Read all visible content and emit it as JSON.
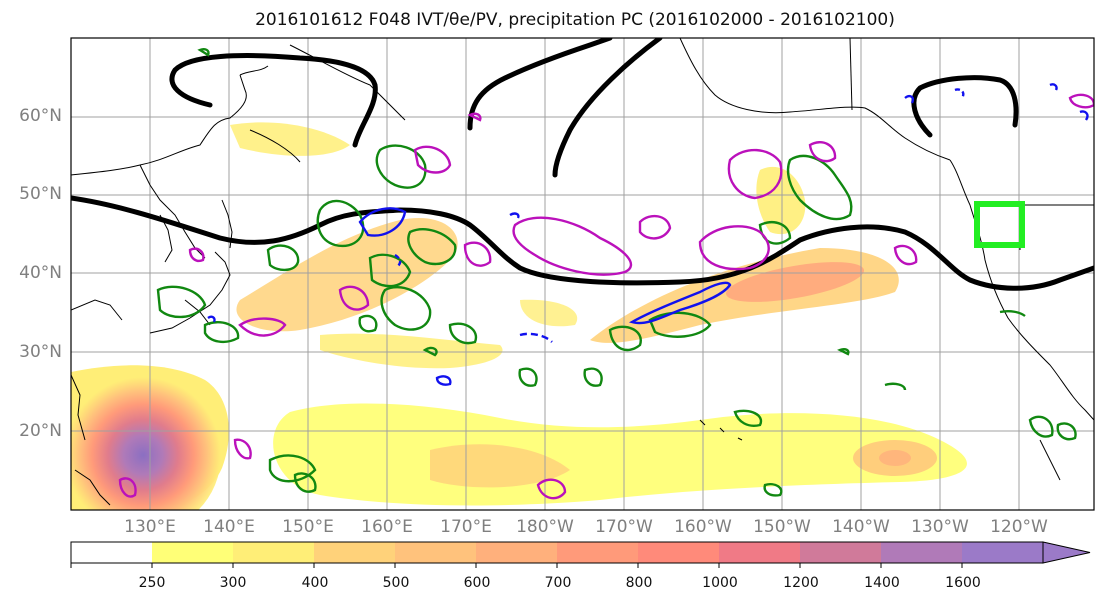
{
  "title": "2016101612 F048 IVT/θe/PV, precipitation PC (2016102000 - 2016102100)",
  "lat_labels": [
    "60°N",
    "50°N",
    "40°N",
    "30°N",
    "20°N"
  ],
  "lon_labels": [
    "130°E",
    "140°E",
    "150°E",
    "160°E",
    "170°E",
    "180°W",
    "170°W",
    "160°W",
    "150°W",
    "140°W",
    "130°W",
    "120°W"
  ],
  "colorbar": {
    "levels": [
      "250",
      "300",
      "400",
      "500",
      "600",
      "700",
      "800",
      "1000",
      "1200",
      "1400",
      "1600"
    ],
    "colors": [
      "#ffffff",
      "#ffff77",
      "#ffee77",
      "#ffd27a",
      "#ffc27c",
      "#ffb07c",
      "#ff9a7a",
      "#ff8a7a",
      "#f07a86",
      "#d07a9a",
      "#b07ab8",
      "#9b7ac8"
    ]
  },
  "contour_colors": {
    "theta_e": "#000000",
    "pv_positive": "#118811",
    "pv_magenta": "#bb11bb",
    "pv_blue": "#1111ee",
    "highlight_box": "#22ee22"
  }
}
